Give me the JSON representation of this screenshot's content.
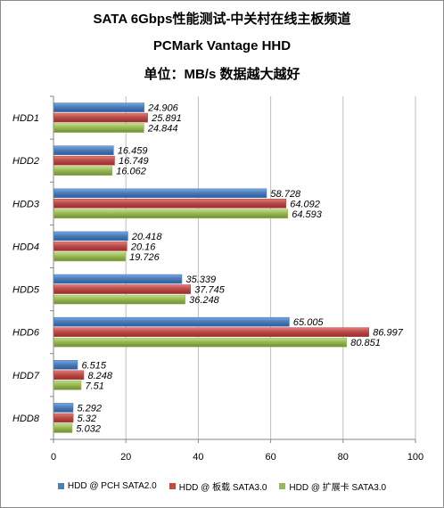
{
  "chart_data": {
    "type": "bar",
    "orientation": "horizontal",
    "title_lines": [
      "SATA 6Gbps性能测试-中关村在线主板频道",
      "PCMark Vantage HHD",
      "单位：MB/s  数据越大越好"
    ],
    "categories": [
      "HDD1",
      "HDD2",
      "HDD3",
      "HDD4",
      "HDD5",
      "HDD6",
      "HDD7",
      "HDD8"
    ],
    "series": [
      {
        "name": "HDD @ PCH SATA2.0",
        "color": "#4a7ebb",
        "values": [
          24.906,
          16.459,
          58.728,
          20.418,
          35.339,
          65.005,
          6.515,
          5.292
        ],
        "labels": [
          "24.906",
          "16.459",
          "58.728",
          "20.418",
          "35.339",
          "65.005",
          "6.515",
          "5.292"
        ]
      },
      {
        "name": "HDD @ 板载 SATA3.0",
        "color": "#be4b48",
        "values": [
          25.891,
          16.749,
          64.092,
          20.16,
          37.745,
          86.997,
          8.248,
          5.32
        ],
        "labels": [
          "25.891",
          "16.749",
          "64.092",
          "20.16",
          "37.745",
          "86.997",
          "8.248",
          "5.32"
        ]
      },
      {
        "name": "HDD @ 扩展卡 SATA3.0",
        "color": "#98b954",
        "values": [
          24.844,
          16.062,
          64.593,
          19.726,
          36.248,
          80.851,
          7.51,
          5.032
        ],
        "labels": [
          "24.844",
          "16.062",
          "64.593",
          "19.726",
          "36.248",
          "80.851",
          "7.51",
          "5.032"
        ]
      }
    ],
    "xlim": [
      0,
      100
    ],
    "xticks": [
      "0",
      "20",
      "40",
      "60",
      "80",
      "100"
    ],
    "grid": true,
    "legend_position": "bottom"
  }
}
